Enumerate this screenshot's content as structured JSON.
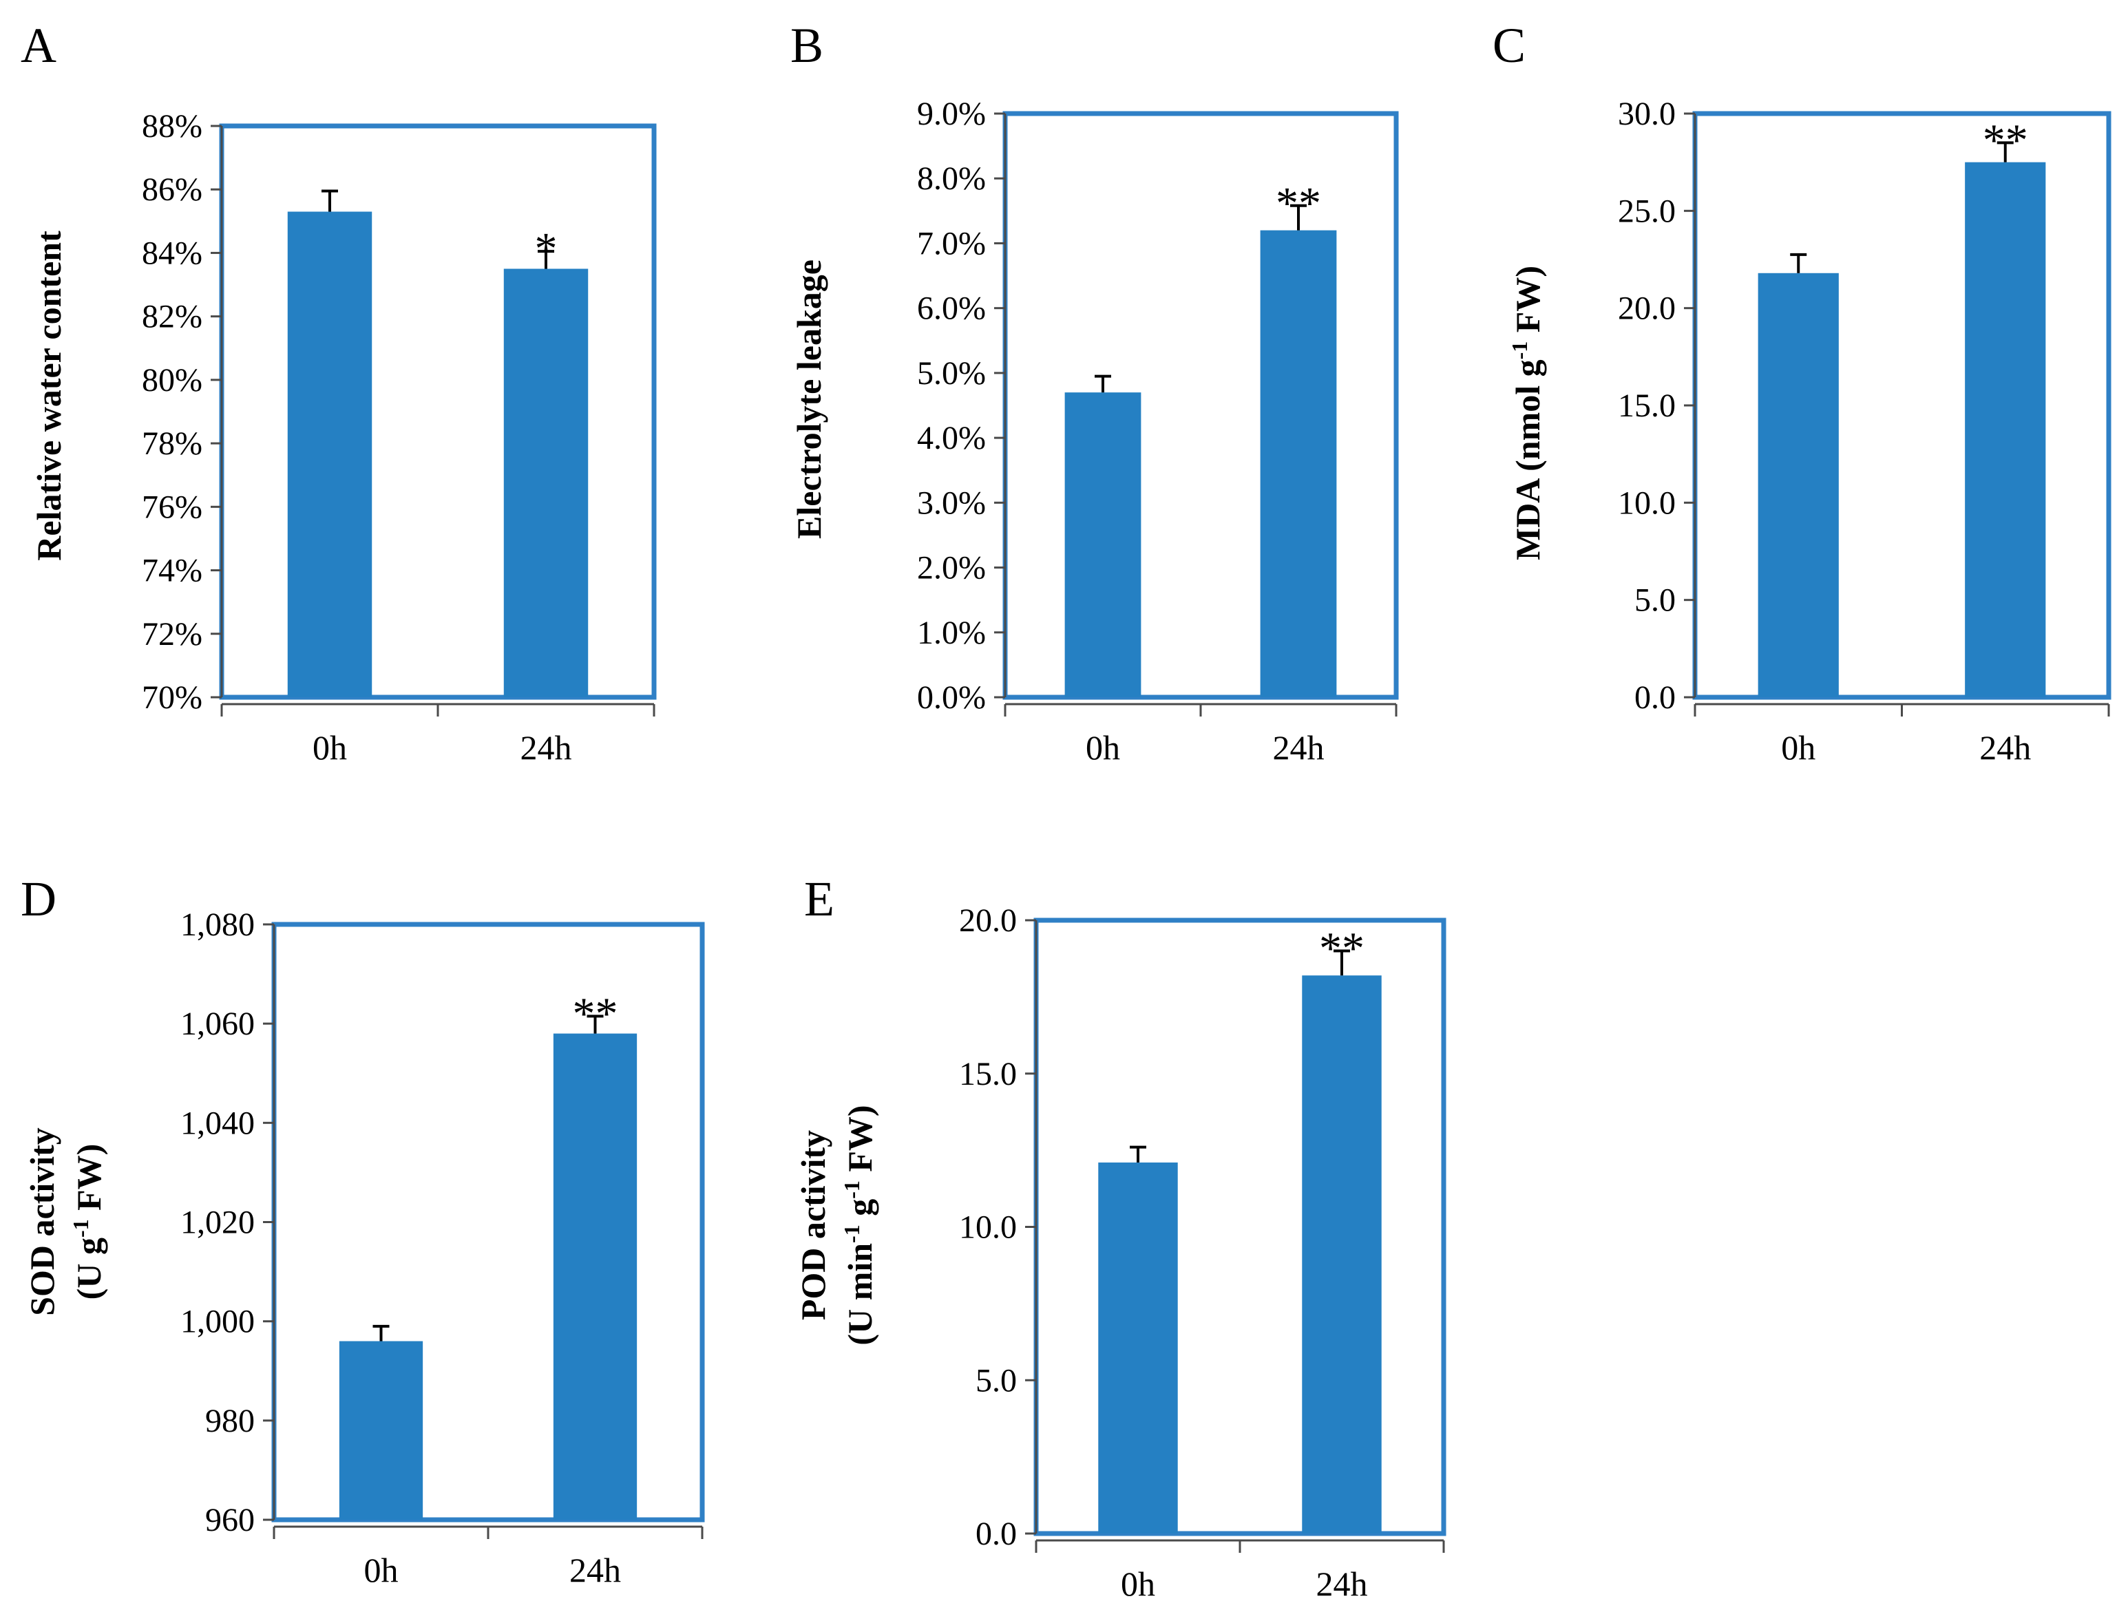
{
  "colors": {
    "bar": "#2580c3",
    "frame": "#2f80c6",
    "axis": "#4a4a4a",
    "errorbar": "#000000"
  },
  "chart_data": [
    {
      "panel": "A",
      "type": "bar",
      "categories": [
        "0h",
        "24h"
      ],
      "values": [
        85.3,
        83.5
      ],
      "errors": [
        0.65,
        0.55
      ],
      "significance": [
        "",
        "*"
      ],
      "ylim": [
        70,
        88
      ],
      "ticks": [
        70,
        72,
        74,
        76,
        78,
        80,
        82,
        84,
        86,
        88
      ],
      "tick_labels": [
        "70%",
        "72%",
        "74%",
        "76%",
        "78%",
        "80%",
        "82%",
        "84%",
        "86%",
        "88%"
      ],
      "ylabel": "Relative water content"
    },
    {
      "panel": "B",
      "type": "bar",
      "categories": [
        "0h",
        "24h"
      ],
      "values": [
        4.7,
        7.2
      ],
      "errors": [
        0.25,
        0.38
      ],
      "significance": [
        "",
        "**"
      ],
      "ylim": [
        0,
        9
      ],
      "ticks": [
        0,
        1,
        2,
        3,
        4,
        5,
        6,
        7,
        8,
        9
      ],
      "tick_labels": [
        "0.0%",
        "1.0%",
        "2.0%",
        "3.0%",
        "4.0%",
        "5.0%",
        "6.0%",
        "7.0%",
        "8.0%",
        "9.0%"
      ],
      "ylabel": "Electrolyte leakage"
    },
    {
      "panel": "C",
      "type": "bar",
      "categories": [
        "0h",
        "24h"
      ],
      "values": [
        21.8,
        27.5
      ],
      "errors": [
        0.95,
        1.0
      ],
      "significance": [
        "",
        "**"
      ],
      "ylim": [
        0,
        30
      ],
      "ticks": [
        0,
        5,
        10,
        15,
        20,
        25,
        30
      ],
      "tick_labels": [
        "0.0",
        "5.0",
        "10.0",
        "15.0",
        "20.0",
        "25.0",
        "30.0"
      ],
      "ylabel": "MDA (nmol g",
      "ylabel_sup": "-1",
      "ylabel_tail": " FW)"
    },
    {
      "panel": "D",
      "type": "bar",
      "categories": [
        "0h",
        "24h"
      ],
      "values": [
        996,
        1058
      ],
      "errors": [
        3,
        3.5
      ],
      "significance": [
        "",
        "**"
      ],
      "ylim": [
        960,
        1080
      ],
      "ticks": [
        960,
        980,
        1000,
        1020,
        1040,
        1060,
        1080
      ],
      "tick_labels": [
        "960",
        "980",
        "1,000",
        "1,020",
        "1,040",
        "1,060",
        "1,080"
      ],
      "ylabel": "SOD activity",
      "ylabel_line2": "(U g",
      "ylabel_line2_sup": "-1",
      "ylabel_line2_tail": " FW)"
    },
    {
      "panel": "E",
      "type": "bar",
      "categories": [
        "0h",
        "24h"
      ],
      "values": [
        12.1,
        18.2
      ],
      "errors": [
        0.5,
        0.8
      ],
      "significance": [
        "",
        "**"
      ],
      "ylim": [
        0,
        20
      ],
      "ticks": [
        0,
        5,
        10,
        15,
        20
      ],
      "tick_labels": [
        "0.0",
        "5.0",
        "10.0",
        "15.0",
        "20.0"
      ],
      "ylabel": "POD activity",
      "ylabel_line2": "(U min",
      "ylabel_line2_sup": "-1",
      "ylabel_line2_mid": " g",
      "ylabel_line2_sup2": "-1",
      "ylabel_line2_tail": " FW)"
    }
  ]
}
